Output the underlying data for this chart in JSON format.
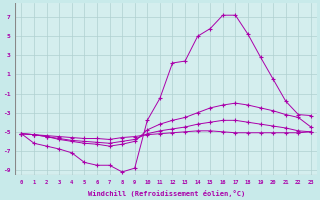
{
  "xlabel": "Windchill (Refroidissement éolien,°C)",
  "background_color": "#c8eaea",
  "plot_bg_color": "#d4eeee",
  "grid_color": "#b0d0d0",
  "line_color": "#aa00aa",
  "xlim": [
    -0.5,
    23.5
  ],
  "ylim": [
    -9.5,
    8.5
  ],
  "xticks": [
    0,
    1,
    2,
    3,
    4,
    5,
    6,
    7,
    8,
    9,
    10,
    11,
    12,
    13,
    14,
    15,
    16,
    17,
    18,
    19,
    20,
    21,
    22,
    23
  ],
  "yticks": [
    -9,
    -7,
    -5,
    -3,
    -1,
    1,
    3,
    5,
    7
  ],
  "series": [
    [
      -5.2,
      -6.2,
      -6.5,
      -6.8,
      -7.2,
      -8.2,
      -8.5,
      -8.5,
      -9.2,
      -8.8,
      -3.8,
      -1.5,
      2.2,
      2.4,
      5.0,
      5.8,
      7.2,
      7.2,
      5.2,
      2.8,
      0.5,
      -1.8,
      -3.2,
      -3.3
    ],
    [
      -5.2,
      -5.3,
      -5.5,
      -5.8,
      -6.0,
      -6.2,
      -6.3,
      -6.5,
      -6.3,
      -6.0,
      -4.8,
      -4.2,
      -3.8,
      -3.5,
      -3.0,
      -2.5,
      -2.2,
      -2.0,
      -2.2,
      -2.5,
      -2.8,
      -3.2,
      -3.5,
      -4.5
    ],
    [
      -5.2,
      -5.3,
      -5.5,
      -5.7,
      -5.9,
      -6.0,
      -6.1,
      -6.2,
      -6.0,
      -5.8,
      -5.2,
      -4.9,
      -4.7,
      -4.5,
      -4.2,
      -4.0,
      -3.8,
      -3.8,
      -4.0,
      -4.2,
      -4.4,
      -4.6,
      -4.9,
      -5.0
    ],
    [
      -5.2,
      -5.3,
      -5.4,
      -5.5,
      -5.6,
      -5.7,
      -5.7,
      -5.8,
      -5.6,
      -5.5,
      -5.3,
      -5.2,
      -5.1,
      -5.0,
      -4.9,
      -4.9,
      -5.0,
      -5.1,
      -5.1,
      -5.1,
      -5.1,
      -5.1,
      -5.1,
      -5.0
    ]
  ]
}
